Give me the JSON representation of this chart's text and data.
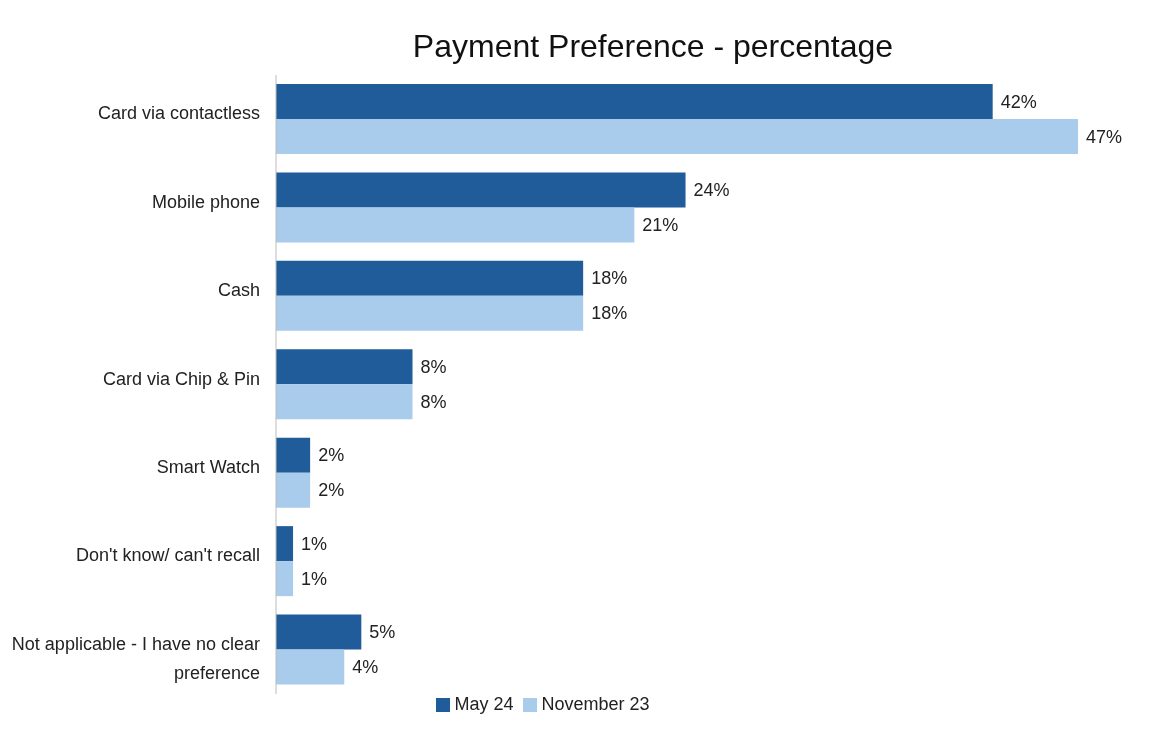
{
  "chart_data": {
    "type": "bar",
    "orientation": "horizontal",
    "title": "Payment Preference - percentage",
    "categories": [
      "Card via contactless",
      "Mobile phone",
      "Cash",
      "Card via Chip & Pin",
      "Smart Watch",
      "Don't know/ can't recall",
      "Not applicable - I have no clear preference"
    ],
    "series": [
      {
        "name": "May 24",
        "color": "#1f5c99",
        "values": [
          42,
          24,
          18,
          8,
          2,
          1,
          5
        ],
        "value_labels": [
          "42%",
          "24%",
          "18%",
          "8%",
          "2%",
          "1%",
          "5%"
        ]
      },
      {
        "name": "November 23",
        "color": "#a9cbec",
        "values": [
          47,
          21,
          18,
          8,
          2,
          1,
          4
        ],
        "value_labels": [
          "47%",
          "21%",
          "18%",
          "8%",
          "2%",
          "1%",
          "4%"
        ]
      }
    ],
    "grid": false,
    "legend": "bottom"
  }
}
